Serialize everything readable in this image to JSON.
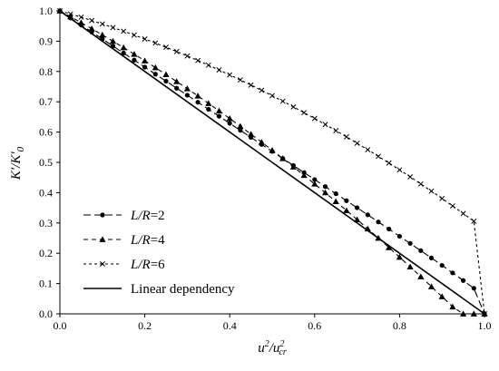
{
  "chart_data": {
    "type": "line",
    "xlabel": {
      "base": "u",
      "sup": "2",
      "sep": "/",
      "base2": "u",
      "sup2": "2",
      "sub2": "cr"
    },
    "ylabel": {
      "part1": "K",
      "prime1": "′",
      "sep": "/",
      "part2": "K",
      "prime2": "′",
      "sub": "0"
    },
    "xlim": [
      0,
      1
    ],
    "ylim": [
      0,
      1
    ],
    "xticks": [
      "0.0",
      "0.2",
      "0.4",
      "0.6",
      "0.8",
      "1.0"
    ],
    "yticks": [
      "0.0",
      "0.1",
      "0.2",
      "0.3",
      "0.4",
      "0.5",
      "0.6",
      "0.7",
      "0.8",
      "0.9",
      "1.0"
    ],
    "grid": false,
    "legend_position": "bottom-left",
    "series": [
      {
        "name_italic": "L/R",
        "name_rest": "=2",
        "marker": "circle",
        "line": "long-dash",
        "color": "#000000",
        "x": [
          0.0,
          0.025,
          0.05,
          0.075,
          0.1,
          0.125,
          0.15,
          0.175,
          0.2,
          0.225,
          0.25,
          0.275,
          0.3,
          0.325,
          0.35,
          0.375,
          0.4,
          0.425,
          0.45,
          0.475,
          0.5,
          0.525,
          0.55,
          0.575,
          0.6,
          0.625,
          0.65,
          0.675,
          0.7,
          0.725,
          0.75,
          0.775,
          0.8,
          0.825,
          0.85,
          0.875,
          0.9,
          0.925,
          0.95,
          0.975,
          1.0
        ],
        "y": [
          1.0,
          0.9768,
          0.9536,
          0.9304,
          0.9072,
          0.884,
          0.8608,
          0.8376,
          0.8144,
          0.7912,
          0.768,
          0.7448,
          0.7217,
          0.6985,
          0.6753,
          0.6521,
          0.6289,
          0.6057,
          0.5825,
          0.5593,
          0.5361,
          0.5129,
          0.4897,
          0.4665,
          0.4433,
          0.42,
          0.3967,
          0.3735,
          0.3502,
          0.3268,
          0.3034,
          0.2799,
          0.2562,
          0.2325,
          0.2086,
          0.1845,
          0.16,
          0.1353,
          0.1101,
          0.0844,
          0.0
        ]
      },
      {
        "name_italic": "L/R",
        "name_rest": "=4",
        "marker": "triangle",
        "line": "dash",
        "color": "#000000",
        "x": [
          0.0,
          0.025,
          0.05,
          0.075,
          0.1,
          0.125,
          0.15,
          0.175,
          0.2,
          0.225,
          0.25,
          0.275,
          0.3,
          0.325,
          0.35,
          0.375,
          0.4,
          0.425,
          0.45,
          0.475,
          0.5,
          0.525,
          0.55,
          0.575,
          0.6,
          0.625,
          0.65,
          0.675,
          0.7,
          0.725,
          0.75,
          0.775,
          0.8,
          0.825,
          0.85,
          0.875,
          0.9,
          0.925,
          0.95,
          0.975,
          1.0
        ],
        "y": [
          1.0,
          0.9808,
          0.9612,
          0.9412,
          0.9208,
          0.9,
          0.8788,
          0.8572,
          0.8352,
          0.8128,
          0.79,
          0.7668,
          0.7432,
          0.7192,
          0.6948,
          0.67,
          0.6448,
          0.6192,
          0.5932,
          0.5668,
          0.54,
          0.5128,
          0.4852,
          0.4572,
          0.4288,
          0.4,
          0.3708,
          0.3412,
          0.3112,
          0.2808,
          0.25,
          0.2188,
          0.1872,
          0.1552,
          0.1228,
          0.09,
          0.0568,
          0.0232,
          -0.01,
          -0.02,
          0.0
        ]
      },
      {
        "name_italic": "L/R",
        "name_rest": "=6",
        "marker": "x",
        "line": "short-dash",
        "color": "#000000",
        "x": [
          0.0,
          0.025,
          0.05,
          0.075,
          0.1,
          0.125,
          0.15,
          0.175,
          0.2,
          0.225,
          0.25,
          0.275,
          0.3,
          0.325,
          0.35,
          0.375,
          0.4,
          0.425,
          0.45,
          0.475,
          0.5,
          0.525,
          0.55,
          0.575,
          0.6,
          0.625,
          0.65,
          0.675,
          0.7,
          0.725,
          0.75,
          0.775,
          0.8,
          0.825,
          0.85,
          0.875,
          0.9,
          0.925,
          0.95,
          0.975,
          1.0
        ],
        "y": [
          1.0,
          0.9898,
          0.9792,
          0.9682,
          0.9568,
          0.945,
          0.9328,
          0.9202,
          0.9072,
          0.8938,
          0.88,
          0.8658,
          0.8512,
          0.8362,
          0.8208,
          0.805,
          0.7888,
          0.7722,
          0.7552,
          0.7378,
          0.72,
          0.7018,
          0.6832,
          0.6642,
          0.6448,
          0.625,
          0.6048,
          0.5842,
          0.5632,
          0.5418,
          0.52,
          0.4978,
          0.4752,
          0.4522,
          0.4288,
          0.405,
          0.3808,
          0.3562,
          0.3312,
          0.3058,
          0.0
        ]
      },
      {
        "name_italic": "",
        "name_rest": "Linear dependency",
        "marker": "none",
        "line": "solid",
        "color": "#000000",
        "x": [
          0.0,
          1.0
        ],
        "y": [
          1.0,
          0.0
        ]
      }
    ]
  }
}
